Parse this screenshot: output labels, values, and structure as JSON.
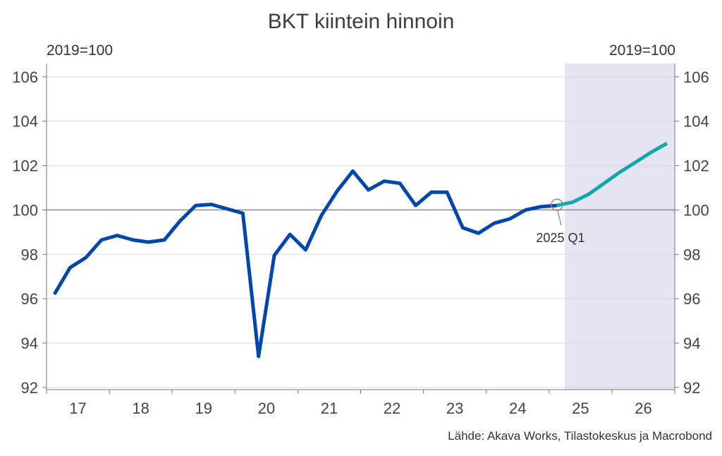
{
  "chart_data": {
    "type": "line",
    "title": "BKT kiintein hinnoin",
    "unit_left": "2019=100",
    "unit_right": "2019=100",
    "source": "Lähde: Akava Works, Tilastokeskus ja Macrobond",
    "ylim": [
      92,
      106
    ],
    "yticks": [
      "92",
      "94",
      "96",
      "98",
      "100",
      "102",
      "104",
      "106"
    ],
    "xtick_labels": [
      "17",
      "18",
      "19",
      "20",
      "21",
      "22",
      "23",
      "24",
      "25",
      "26"
    ],
    "x_start": "2017 Q1",
    "forecast_shading_start": "2025 Q2",
    "reference_line": 100,
    "grid": true,
    "annotation": {
      "label": "2025 Q1",
      "x": "2025 Q1",
      "y": 100.2
    },
    "colors": {
      "actual": "#0047AB",
      "forecast": "#12A8A8",
      "shade": "#E4E4F2",
      "reference": "#8C8C8C"
    },
    "series": [
      {
        "kind": "actual",
        "x": [
          "2017 Q1",
          "2017 Q2",
          "2017 Q3",
          "2017 Q4",
          "2018 Q1",
          "2018 Q2",
          "2018 Q3",
          "2018 Q4",
          "2019 Q1",
          "2019 Q2",
          "2019 Q3",
          "2019 Q4",
          "2020 Q1",
          "2020 Q2",
          "2020 Q3",
          "2020 Q4",
          "2021 Q1",
          "2021 Q2",
          "2021 Q3",
          "2021 Q4",
          "2022 Q1",
          "2022 Q2",
          "2022 Q3",
          "2022 Q4",
          "2023 Q1",
          "2023 Q2",
          "2023 Q3",
          "2023 Q4",
          "2024 Q1",
          "2024 Q2",
          "2024 Q3",
          "2024 Q4",
          "2025 Q1"
        ],
        "values": [
          96.2,
          97.4,
          97.85,
          98.65,
          98.85,
          98.65,
          98.55,
          98.65,
          99.5,
          100.2,
          100.25,
          100.05,
          99.85,
          93.4,
          97.95,
          98.9,
          98.2,
          99.75,
          100.85,
          101.75,
          100.9,
          101.3,
          101.2,
          100.2,
          100.8,
          100.8,
          99.2,
          98.95,
          99.4,
          99.6,
          100.0,
          100.15,
          100.2
        ]
      },
      {
        "kind": "forecast",
        "x": [
          "2025 Q1",
          "2025 Q2",
          "2025 Q3",
          "2025 Q4",
          "2026 Q1",
          "2026 Q2",
          "2026 Q3",
          "2026 Q4"
        ],
        "values": [
          100.2,
          100.35,
          100.7,
          101.2,
          101.7,
          102.15,
          102.6,
          103.0
        ]
      }
    ]
  }
}
